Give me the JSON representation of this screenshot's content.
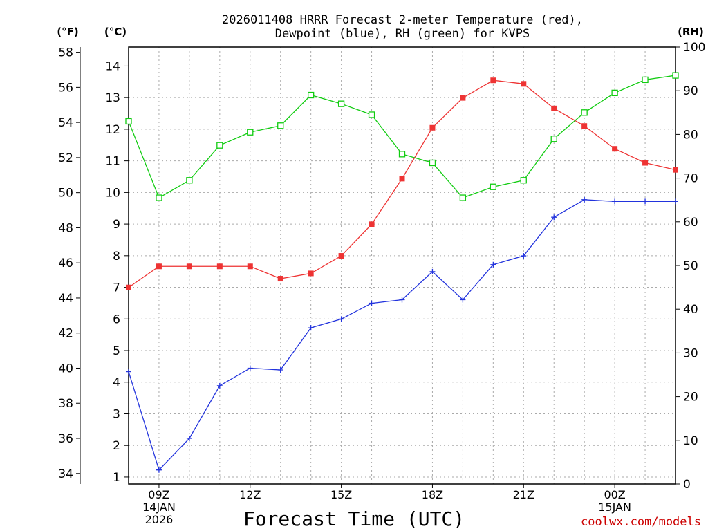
{
  "chart_data": {
    "type": "line",
    "title_lines": [
      "2026011408 HRRR Forecast 2-meter Temperature (red),",
      "Dewpoint (blue), RH (green) for KVPS"
    ],
    "xlabel": "Forecast Time (UTC)",
    "credit": "coolwx.com/models",
    "x_hours": [
      8,
      9,
      10,
      11,
      12,
      13,
      14,
      15,
      16,
      17,
      18,
      19,
      20,
      21,
      22,
      23,
      24,
      25,
      26
    ],
    "x_range": [
      8,
      26
    ],
    "x_ticks": [
      {
        "hour": 9,
        "lines": [
          "09Z",
          "14JAN",
          "2026"
        ]
      },
      {
        "hour": 12,
        "lines": [
          "12Z"
        ]
      },
      {
        "hour": 15,
        "lines": [
          "15Z"
        ]
      },
      {
        "hour": 18,
        "lines": [
          "18Z"
        ]
      },
      {
        "hour": 21,
        "lines": [
          "21Z"
        ]
      },
      {
        "hour": 24,
        "lines": [
          "00Z",
          "15JAN"
        ]
      }
    ],
    "axes": {
      "fahrenheit": {
        "label": "(°F)",
        "range": [
          33.4,
          58.3
        ],
        "ticks": [
          34,
          36,
          38,
          40,
          42,
          44,
          46,
          48,
          50,
          52,
          54,
          56,
          58
        ]
      },
      "celsius": {
        "label": "(°C)",
        "range": [
          0.78,
          14.6
        ],
        "ticks": [
          1,
          2,
          3,
          4,
          5,
          6,
          7,
          8,
          9,
          10,
          11,
          12,
          13,
          14
        ]
      },
      "rh": {
        "label": "(RH)",
        "range": [
          0,
          100
        ],
        "ticks": [
          0,
          10,
          20,
          30,
          40,
          50,
          60,
          70,
          80,
          90,
          100
        ]
      }
    },
    "grid": true,
    "series": [
      {
        "name": "2-meter Temperature",
        "axis": "fahrenheit",
        "color": "#ee3333",
        "marker": "filled-square",
        "values": [
          44.6,
          45.8,
          45.8,
          45.8,
          45.8,
          45.1,
          45.4,
          46.4,
          48.2,
          50.8,
          53.7,
          55.4,
          56.4,
          56.2,
          54.8,
          53.8,
          52.5,
          51.7,
          51.3
        ]
      },
      {
        "name": "Dewpoint",
        "axis": "fahrenheit",
        "color": "#2233dd",
        "marker": "plus",
        "values": [
          39.8,
          34.2,
          36.0,
          39.0,
          40.0,
          39.9,
          42.3,
          42.8,
          43.7,
          43.9,
          45.5,
          43.9,
          45.9,
          46.4,
          48.6,
          49.6,
          49.5,
          49.5,
          49.5
        ]
      },
      {
        "name": "RH",
        "axis": "rh",
        "color": "#11cc11",
        "marker": "open-square",
        "values": [
          83,
          65.5,
          69.5,
          77.5,
          80.5,
          82,
          89,
          87,
          84.5,
          75.5,
          73.5,
          65.5,
          68,
          69.5,
          79,
          85,
          89.5,
          92.5,
          93.5
        ]
      }
    ]
  }
}
